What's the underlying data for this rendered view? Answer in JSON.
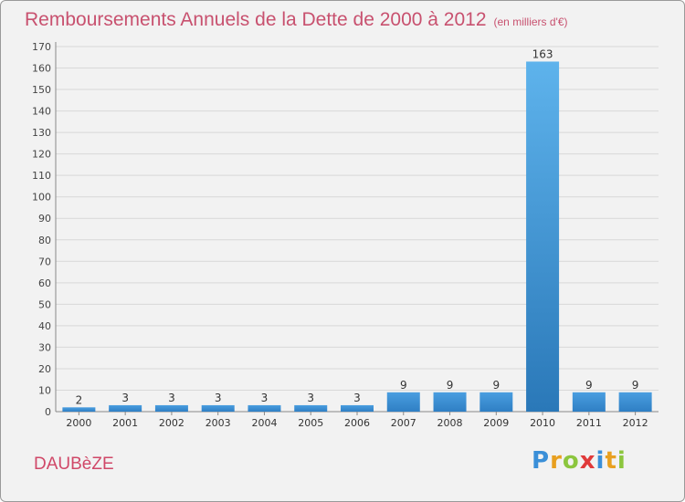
{
  "title": "Remboursements Annuels de la Dette de 2000 à 2012",
  "unit": "(en milliers d'€)",
  "commune": "DAUBèZE",
  "logo": {
    "letters": [
      {
        "ch": "P",
        "color": "#3a8fd8"
      },
      {
        "ch": "r",
        "color": "#e8a020"
      },
      {
        "ch": "o",
        "color": "#8cc63e"
      },
      {
        "ch": "x",
        "color": "#e03a3a"
      },
      {
        "ch": "i",
        "color": "#3a8fd8"
      },
      {
        "ch": "t",
        "color": "#e8a020"
      },
      {
        "ch": "i",
        "color": "#8cc63e"
      }
    ]
  },
  "chart_data": {
    "type": "bar",
    "categories": [
      "2000",
      "2001",
      "2002",
      "2003",
      "2004",
      "2005",
      "2006",
      "2007",
      "2008",
      "2009",
      "2010",
      "2011",
      "2012"
    ],
    "values": [
      2,
      3,
      3,
      3,
      3,
      3,
      3,
      9,
      9,
      9,
      163,
      9,
      9
    ],
    "data_labels": [
      "2",
      "3",
      "3",
      "3",
      "3",
      "3",
      "3",
      "9",
      "9",
      "9",
      "163",
      "9",
      "9"
    ],
    "ylim": [
      0,
      170
    ],
    "yticks": [
      0,
      10,
      20,
      30,
      40,
      50,
      60,
      70,
      80,
      90,
      100,
      110,
      120,
      130,
      140,
      150,
      160,
      170
    ],
    "grid": true,
    "bar_color": "#3a8fd8"
  }
}
